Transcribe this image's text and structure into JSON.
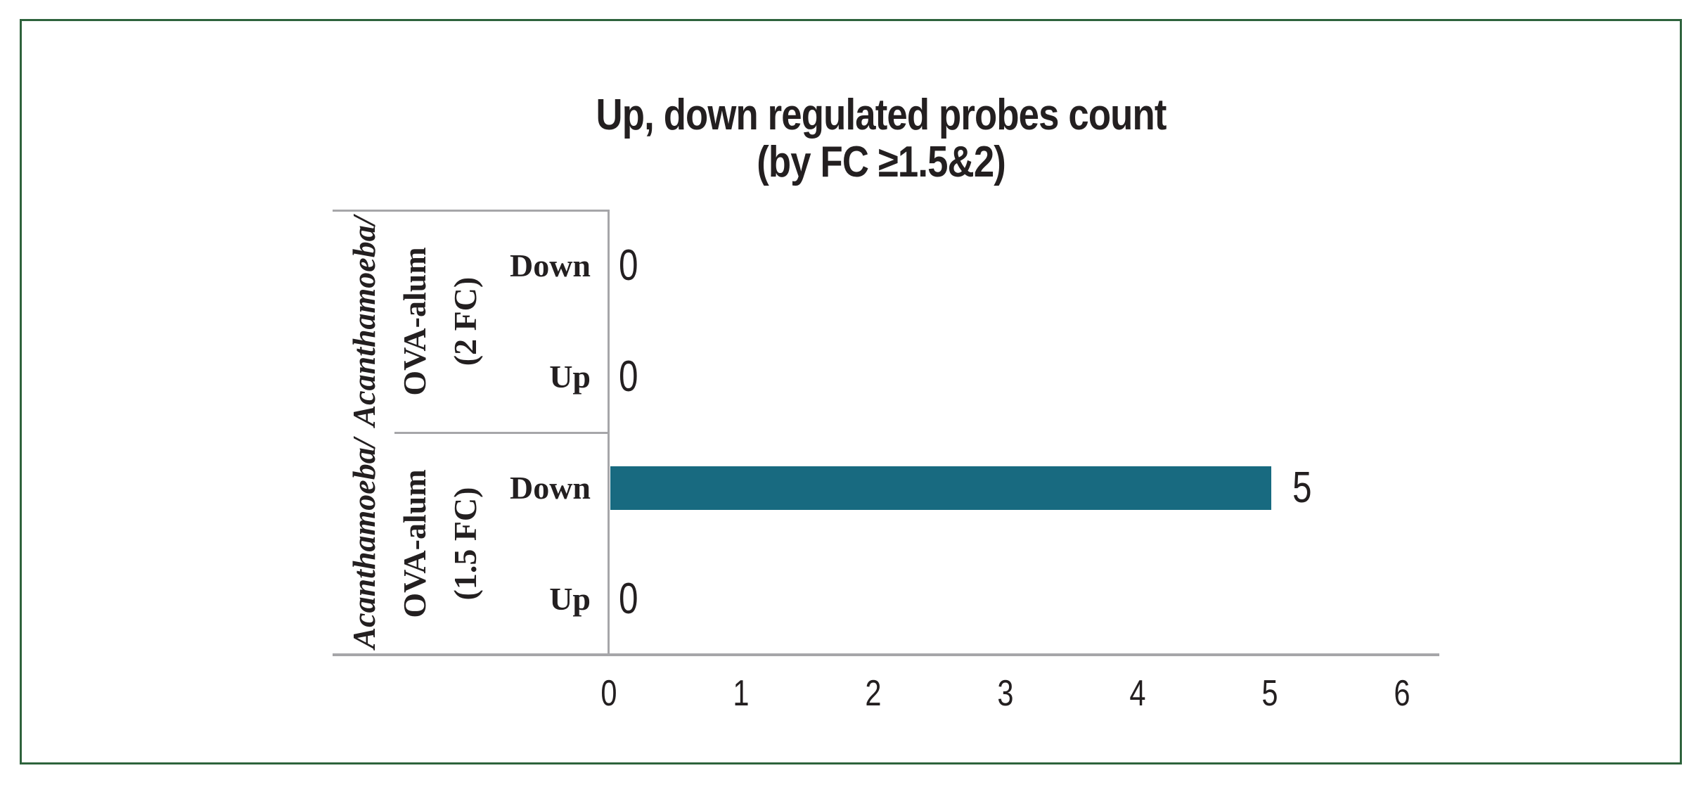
{
  "chart_data": {
    "type": "bar",
    "orientation": "horizontal",
    "title": "Up, down regulated probes count (by FC ≥1.5&2)",
    "title_lines": [
      "Up, down regulated probes count",
      "(by FC ≥1.5&2)"
    ],
    "groups": [
      {
        "label_italic": "Acanthamoeba/",
        "label_lines": [
          "OVA-alum",
          "(2 FC)"
        ],
        "rows": [
          {
            "category": "Down",
            "value": 0
          },
          {
            "category": "Up",
            "value": 0
          }
        ]
      },
      {
        "label_italic": "Acanthamoeba/",
        "label_lines": [
          "OVA-alum",
          "(1.5 FC)"
        ],
        "rows": [
          {
            "category": "Down",
            "value": 5
          },
          {
            "category": "Up",
            "value": 0
          }
        ]
      }
    ],
    "x_ticks": [
      0,
      1,
      2,
      3,
      4,
      5,
      6
    ],
    "xlim": [
      0,
      6.3
    ],
    "value_labels_shown": true,
    "grid": "off",
    "legend": "none",
    "colors": {
      "bar": "#186a80",
      "axis_line": "#a6a6a9",
      "text": "#231f20",
      "frame_border": "#2e633c",
      "background": "#ffffff"
    }
  }
}
